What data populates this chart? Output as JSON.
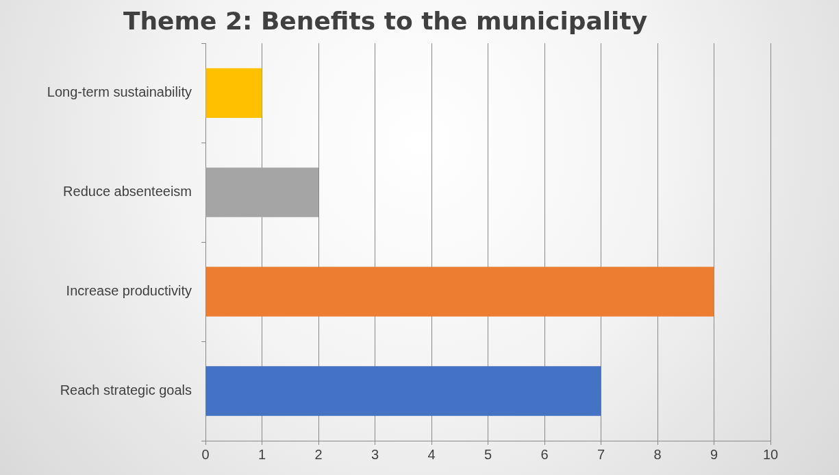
{
  "chart_data": {
    "type": "bar",
    "orientation": "horizontal",
    "title": "Theme 2: Benefits to the municipality",
    "categories": [
      "Long-term sustainability",
      "Reduce absenteeism",
      "Increase productivity",
      "Reach strategic goals"
    ],
    "values": [
      1,
      2,
      9,
      7
    ],
    "colors": [
      "#ffc000",
      "#a5a5a5",
      "#ed7d31",
      "#4472c4"
    ],
    "xlim": [
      0,
      10
    ],
    "xticks": [
      0,
      1,
      2,
      3,
      4,
      5,
      6,
      7,
      8,
      9,
      10
    ],
    "grid": "x"
  }
}
